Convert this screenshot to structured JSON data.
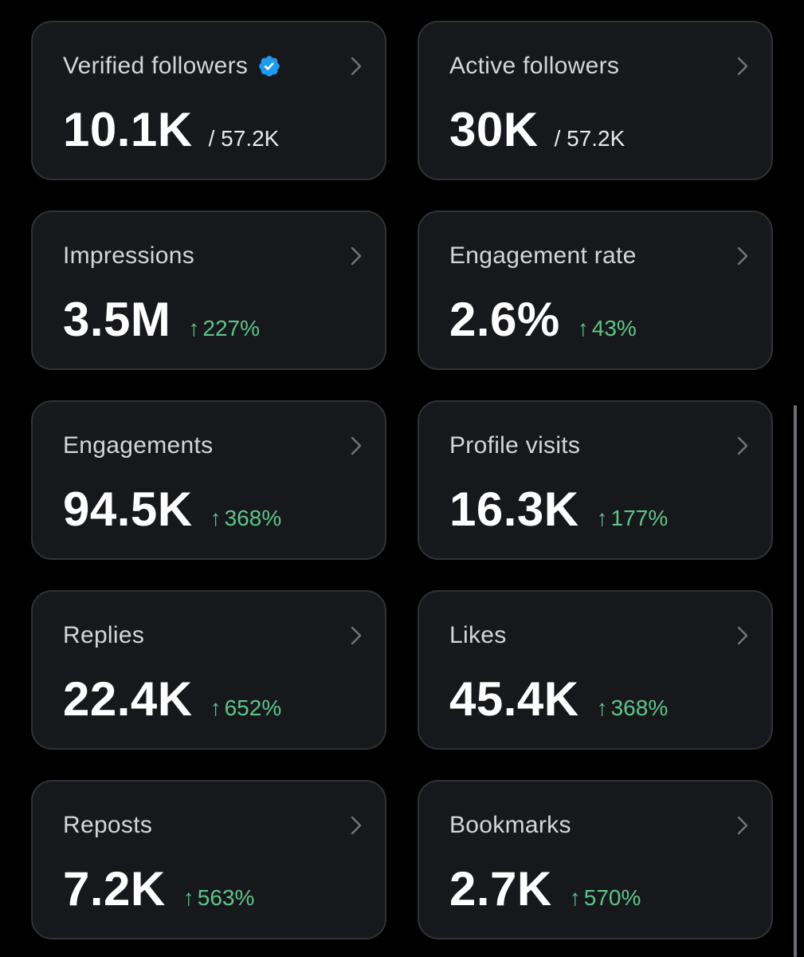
{
  "accent_color": "#1d9bf0",
  "positive_color": "#5ec58a",
  "icons": {
    "verified": "verified-badge-icon",
    "chevron": "chevron-right-icon",
    "arrow_up": "arrow-up-icon"
  },
  "cards": [
    {
      "title": "Verified followers",
      "verified": true,
      "value": "10.1K",
      "sub": "/ 57.2K"
    },
    {
      "title": "Active followers",
      "value": "30K",
      "sub": "/ 57.2K"
    },
    {
      "title": "Impressions",
      "value": "3.5M",
      "arrow": "↑",
      "change": "227%"
    },
    {
      "title": "Engagement rate",
      "value": "2.6%",
      "arrow": "↑",
      "change": "43%"
    },
    {
      "title": "Engagements",
      "value": "94.5K",
      "arrow": "↑",
      "change": "368%"
    },
    {
      "title": "Profile visits",
      "value": "16.3K",
      "arrow": "↑",
      "change": "177%"
    },
    {
      "title": "Replies",
      "value": "22.4K",
      "arrow": "↑",
      "change": "652%"
    },
    {
      "title": "Likes",
      "value": "45.4K",
      "arrow": "↑",
      "change": "368%"
    },
    {
      "title": "Reposts",
      "value": "7.2K",
      "arrow": "↑",
      "change": "563%"
    },
    {
      "title": "Bookmarks",
      "value": "2.7K",
      "arrow": "↑",
      "change": "570%"
    }
  ]
}
